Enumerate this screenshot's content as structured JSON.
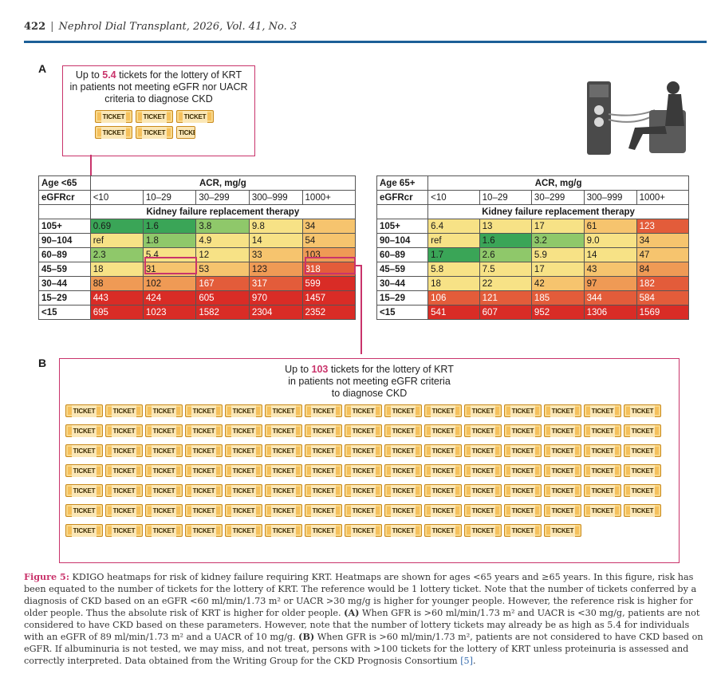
{
  "header": {
    "page": "422",
    "separator": "|",
    "journal": "Nephrol Dial Transplant, 2026, Vol. 41, No. 3"
  },
  "panel_a": {
    "letter": "A",
    "callout": {
      "pre": "Up to ",
      "value": "5.4",
      "post": " tickets for the lottery of KRT",
      "line2": "in patients not meeting eGFR nor UACR",
      "line3": "criteria to diagnose CKD"
    },
    "ticket_label": "TICKET",
    "ticket_count": 5.4
  },
  "tables": {
    "young": {
      "age_label": "Age <65",
      "acr_label": "ACR, mg/g",
      "egfr_label": "eGFRcr",
      "acr_cols": [
        "<10",
        "10–29",
        "30–299",
        "300–999",
        "1000+"
      ],
      "outcome": "Kidney failure replacement therapy",
      "rows": [
        {
          "egfr": "105+",
          "values": [
            "0.69",
            "1.6",
            "3.8",
            "9.8",
            "34"
          ]
        },
        {
          "egfr": "90–104",
          "values": [
            "ref",
            "1.8",
            "4.9",
            "14",
            "54"
          ]
        },
        {
          "egfr": "60–89",
          "values": [
            "2.3",
            "5.4",
            "12",
            "33",
            "103"
          ]
        },
        {
          "egfr": "45–59",
          "values": [
            "18",
            "31",
            "53",
            "123",
            "318"
          ]
        },
        {
          "egfr": "30–44",
          "values": [
            "88",
            "102",
            "167",
            "317",
            "599"
          ]
        },
        {
          "egfr": "15–29",
          "values": [
            "443",
            "424",
            "605",
            "970",
            "1457"
          ]
        },
        {
          "egfr": "<15",
          "values": [
            "695",
            "1023",
            "1582",
            "2304",
            "2352"
          ]
        }
      ]
    },
    "old": {
      "age_label": "Age 65+",
      "acr_label": "ACR, mg/g",
      "egfr_label": "eGFRcr",
      "acr_cols": [
        "<10",
        "10–29",
        "30–299",
        "300–999",
        "1000+"
      ],
      "outcome": "Kidney failure replacement therapy",
      "rows": [
        {
          "egfr": "105+",
          "values": [
            "6.4",
            "13",
            "17",
            "61",
            "123"
          ]
        },
        {
          "egfr": "90–104",
          "values": [
            "ref",
            "1.6",
            "3.2",
            "9.0",
            "34"
          ]
        },
        {
          "egfr": "60–89",
          "values": [
            "1.7",
            "2.6",
            "5.9",
            "14",
            "47"
          ]
        },
        {
          "egfr": "45–59",
          "values": [
            "5.8",
            "7.5",
            "17",
            "43",
            "84"
          ]
        },
        {
          "egfr": "30–44",
          "values": [
            "18",
            "22",
            "42",
            "97",
            "182"
          ]
        },
        {
          "egfr": "15–29",
          "values": [
            "106",
            "121",
            "185",
            "344",
            "584"
          ]
        },
        {
          "egfr": "<15",
          "values": [
            "541",
            "607",
            "952",
            "1306",
            "1569"
          ]
        }
      ]
    },
    "colors": {
      "c1": "#3aa557",
      "c2": "#8fc86a",
      "c3": "#f7e286",
      "c4": "#f6c46e",
      "c5": "#ef9a55",
      "c6": "#e35c3a",
      "c7": "#d92c26",
      "highlight": "#c9346b"
    }
  },
  "panel_b": {
    "letter": "B",
    "callout": {
      "pre": "Up to ",
      "value": "103",
      "post": " tickets for the lottery of KRT",
      "line2": "in patients not meeting eGFR criteria",
      "line3": "to diagnose CKD"
    },
    "ticket_count": 103
  },
  "caption": {
    "label": "Figure 5:",
    "text1": " KDIGO heatmaps for risk of kidney failure requiring KRT. Heatmaps are shown for ages <65 years and ≥65 years. In this figure, risk has been equated to the number of tickets for the lottery of KRT. The reference would be 1 lottery ticket. Note that the number of tickets conferred by a diagnosis of CKD based on an eGFR <60 ml/min/1.73 m² or UACR >30 mg/g is higher for younger people. However, the reference risk is higher for older people. Thus the absolute risk of KRT is higher for older people. ",
    "a_label": "(A)",
    "text2": " When GFR is >60 ml/min/1.73 m² and UACR is <30 mg/g, patients are not considered to have CKD based on these parameters. However, note that the number of lottery tickets may already be as high as 5.4 for individuals with an eGFR of 89 ml/min/1.73 m² and a UACR of 10 mg/g. ",
    "b_label": "(B)",
    "text3": " When GFR is >60 ml/min/1.73 m², patients are not considered to have CKD based on eGFR. If albuminuria is not tested, we may miss, and not treat, persons with >100 tickets for the lottery of KRT unless proteinuria is assessed and correctly interpreted. Data obtained from the Writing Group for the CKD Prognosis Consortium ",
    "ref": "[5]",
    "end": "."
  },
  "icons": {
    "dialysis": "dialysis-patient-icon",
    "ticket": "ticket-icon"
  }
}
